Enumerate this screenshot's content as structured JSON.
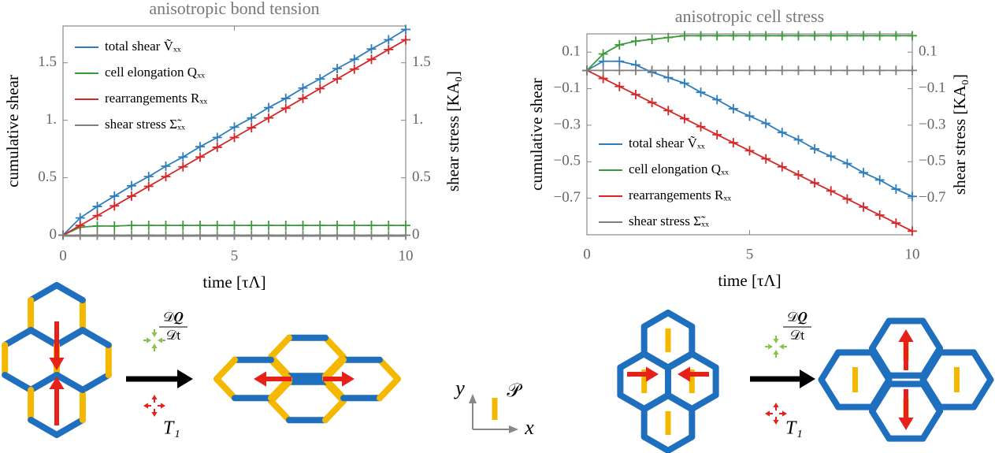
{
  "chart_data": [
    {
      "type": "line",
      "title": "anisotropic bond tension",
      "xlabel": "time [τΛ]",
      "ylabel": "cumulative shear",
      "y2label": "shear stress [KA₀]",
      "x": [
        0,
        0.5,
        1,
        1.5,
        2,
        2.5,
        3,
        3.5,
        4,
        4.5,
        5,
        5.5,
        6,
        6.5,
        7,
        7.5,
        8,
        8.5,
        9,
        9.5,
        10
      ],
      "xlim": [
        0,
        10
      ],
      "xticks": [
        0,
        5,
        10
      ],
      "ylim": [
        -0.01,
        1.82
      ],
      "yticks": [
        0,
        0.5,
        {
          "value": 1,
          "label": "1."
        },
        1.5
      ],
      "y2lim": [
        -0.01,
        1.82
      ],
      "y2ticks": [
        0,
        0.5,
        {
          "value": 1,
          "label": "1."
        },
        1.5
      ],
      "legend": "upper left",
      "series": [
        {
          "name": "total shear Ṽₓₓ",
          "color": "#2e7ebc",
          "values": [
            0,
            0.15,
            0.25,
            0.34,
            0.43,
            0.51,
            0.6,
            0.68,
            0.77,
            0.85,
            0.94,
            1.02,
            1.11,
            1.19,
            1.28,
            1.36,
            1.45,
            1.53,
            1.62,
            1.7,
            1.79
          ]
        },
        {
          "name": "cell elongation Qₓₓ",
          "color": "#3a9a3a",
          "values": [
            0,
            0.07,
            0.08,
            0.08,
            0.085,
            0.085,
            0.085,
            0.085,
            0.085,
            0.085,
            0.085,
            0.085,
            0.085,
            0.085,
            0.085,
            0.085,
            0.085,
            0.085,
            0.085,
            0.085,
            0.085
          ]
        },
        {
          "name": "rearrangements Rₓₓ",
          "color": "#d62728",
          "values": [
            0,
            0.085,
            0.17,
            0.255,
            0.34,
            0.425,
            0.51,
            0.595,
            0.68,
            0.765,
            0.85,
            0.935,
            1.02,
            1.105,
            1.19,
            1.275,
            1.36,
            1.445,
            1.53,
            1.615,
            1.7
          ]
        },
        {
          "name": "shear stress Σ̃ₓₓ",
          "color": "#7f7f7f",
          "axis": "y2",
          "values": [
            0,
            0,
            0,
            0,
            0,
            0,
            0,
            0,
            0,
            0,
            0,
            0,
            0,
            0,
            0,
            0,
            0,
            0,
            0,
            0,
            0
          ]
        }
      ]
    },
    {
      "type": "line",
      "title": "anisotropic cell stress",
      "xlabel": "time [τΛ]",
      "ylabel": "cumulative shear",
      "y2label": "shear stress [KA₀]",
      "x": [
        0,
        0.5,
        1,
        1.5,
        2,
        2.5,
        3,
        3.5,
        4,
        4.5,
        5,
        5.5,
        6,
        6.5,
        7,
        7.5,
        8,
        8.5,
        9,
        9.5,
        10
      ],
      "xlim": [
        0,
        10
      ],
      "xticks": [
        0,
        5,
        10
      ],
      "ylim": [
        -0.9,
        0.2
      ],
      "yticks": [
        0.1,
        {
          "value": -0.1,
          "label": "−0.1"
        },
        {
          "value": -0.3,
          "label": "−0.3"
        },
        {
          "value": -0.5,
          "label": "−0.5"
        },
        {
          "value": -0.7,
          "label": "−0.7"
        }
      ],
      "y2lim": [
        -0.9,
        0.2
      ],
      "y2ticks": [
        0.1,
        {
          "value": -0.1,
          "label": "−0.1"
        },
        {
          "value": -0.3,
          "label": "−0.3"
        },
        {
          "value": -0.5,
          "label": "−0.5"
        },
        {
          "value": -0.7,
          "label": "−0.7"
        }
      ],
      "legend": "lower left",
      "series": [
        {
          "name": "total shear Ṽₓₓ",
          "color": "#2e7ebc",
          "values": [
            0,
            0.05,
            0.05,
            0.03,
            -0.01,
            -0.04,
            -0.07,
            -0.12,
            -0.16,
            -0.21,
            -0.25,
            -0.29,
            -0.34,
            -0.38,
            -0.43,
            -0.47,
            -0.51,
            -0.56,
            -0.6,
            -0.65,
            -0.69
          ]
        },
        {
          "name": "cell elongation Qₓₓ",
          "color": "#3a9a3a",
          "values": [
            0,
            0.09,
            0.14,
            0.16,
            0.17,
            0.18,
            0.19,
            0.19,
            0.19,
            0.19,
            0.19,
            0.19,
            0.19,
            0.19,
            0.19,
            0.19,
            0.19,
            0.19,
            0.19,
            0.19,
            0.19
          ]
        },
        {
          "name": "rearrangements Rₓₓ",
          "color": "#d62728",
          "values": [
            0,
            -0.044,
            -0.088,
            -0.132,
            -0.176,
            -0.22,
            -0.264,
            -0.308,
            -0.352,
            -0.396,
            -0.44,
            -0.484,
            -0.528,
            -0.572,
            -0.616,
            -0.66,
            -0.704,
            -0.748,
            -0.792,
            -0.836,
            -0.88
          ]
        },
        {
          "name": "shear stress Σ̃ₓₓ",
          "color": "#7f7f7f",
          "axis": "y2",
          "values": [
            0,
            0,
            0,
            0,
            0,
            0,
            0,
            0,
            0,
            0,
            0,
            0,
            0,
            0,
            0,
            0,
            0,
            0,
            0,
            0,
            0
          ]
        }
      ]
    }
  ],
  "diagrams": [
    {
      "numerator": "𝒟𝑸",
      "denominator": "𝒟t",
      "transition": "T₁"
    },
    {
      "numerator": "𝒟𝑸",
      "denominator": "𝒟t",
      "transition": "T₁"
    }
  ],
  "axes_key": {
    "y": "y",
    "x": "x",
    "polarity": "𝒫"
  }
}
